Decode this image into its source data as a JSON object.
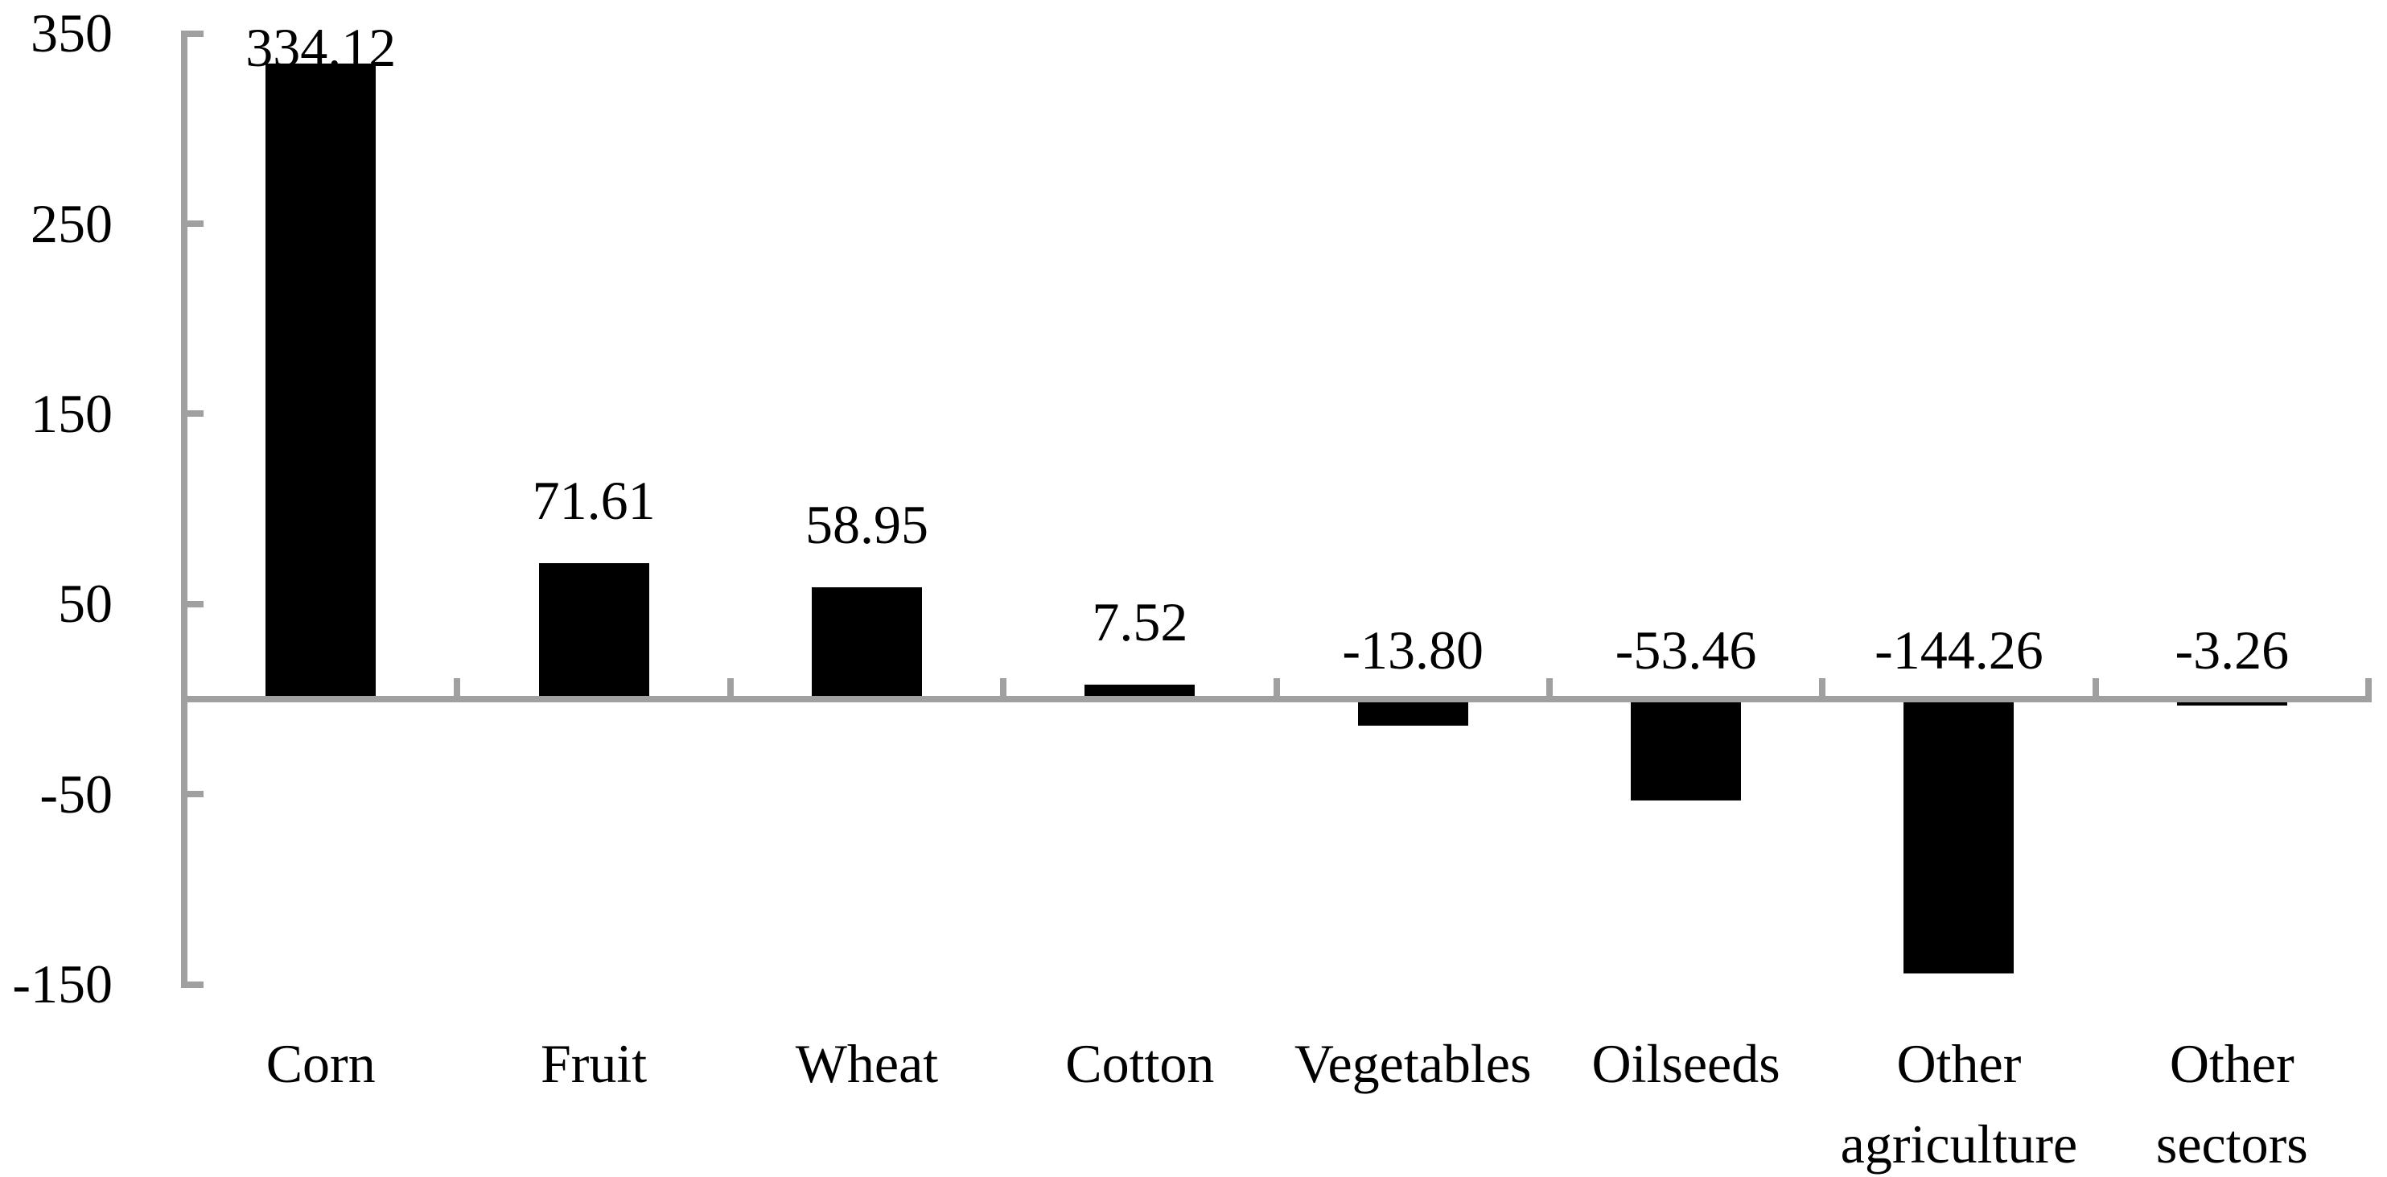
{
  "chart_data": {
    "type": "bar",
    "title": "",
    "xlabel": "",
    "ylabel": "",
    "categories": [
      "Corn",
      "Fruit",
      "Wheat",
      "Cotton",
      "Vegetables",
      "Oilseeds",
      "Other agriculture",
      "Other sectors"
    ],
    "category_labels": [
      "Corn",
      "Fruit",
      "Wheat",
      "Cotton",
      "Vegetables",
      "Oilseeds",
      "Other\nagriculture",
      "Other\nsectors"
    ],
    "values": [
      334.12,
      71.61,
      58.95,
      7.52,
      -13.8,
      -53.46,
      -144.26,
      -3.26
    ],
    "value_labels": [
      "334.12",
      "71.61",
      "58.95",
      "7.52",
      "-13.80",
      "-53.46",
      "-144.26",
      "-3.26"
    ],
    "ylim": [
      -150,
      350
    ],
    "yticks": [
      350,
      250,
      150,
      50,
      -50,
      -150
    ],
    "ytick_labels": [
      "350",
      "250",
      "150",
      "50",
      "-50",
      "-150"
    ],
    "grid": false,
    "legend": false,
    "bar_color": "#000000",
    "axis_color": "#a0a0a0",
    "text_color": "#000000"
  }
}
